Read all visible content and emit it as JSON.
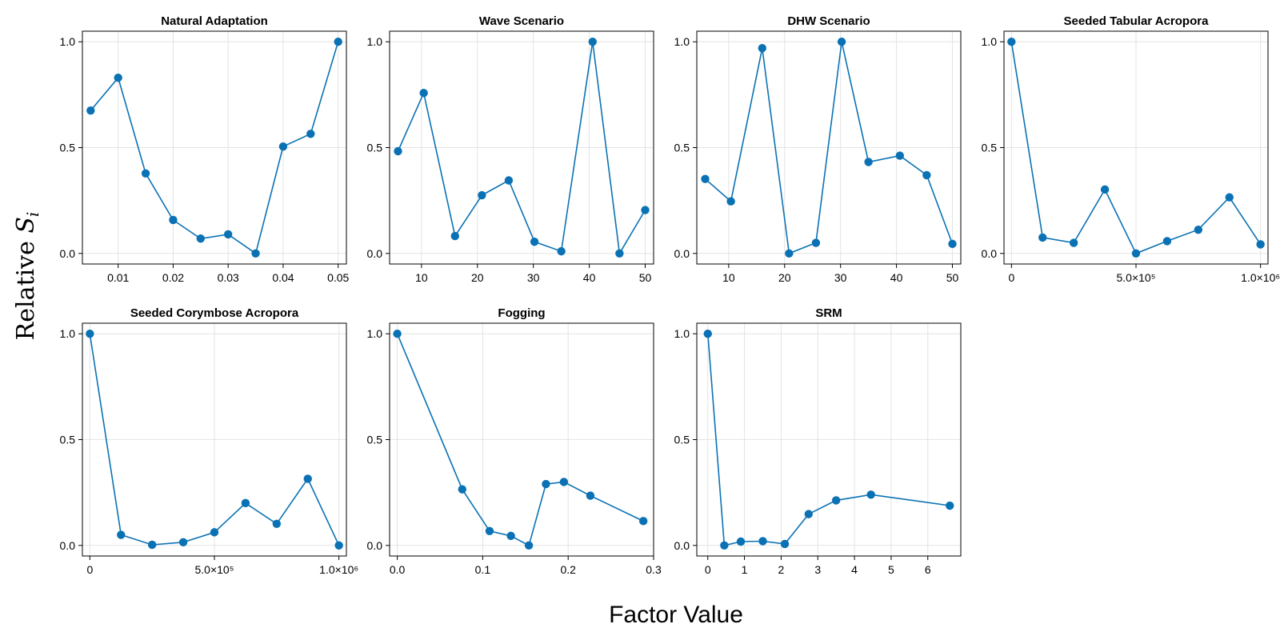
{
  "figure": {
    "ylabel_text": "Relative ",
    "ylabel_var": "S",
    "ylabel_sub": "i",
    "xlabel": "Factor Value",
    "series_color": "#0a72b4"
  },
  "chart_data": [
    {
      "type": "line",
      "title": "Natural Adaptation",
      "x": [
        0.005,
        0.01,
        0.015,
        0.02,
        0.025,
        0.03,
        0.035,
        0.04,
        0.045,
        0.05
      ],
      "y": [
        0.675,
        0.83,
        0.378,
        0.158,
        0.07,
        0.09,
        0.0,
        0.505,
        0.565,
        1.0
      ],
      "xlim": [
        0.0035,
        0.0515
      ],
      "ylim": [
        -0.05,
        1.05
      ],
      "xticks": [
        0.01,
        0.02,
        0.03,
        0.04,
        0.05
      ],
      "xtick_labels": [
        "0.01",
        "0.02",
        "0.03",
        "0.04",
        "0.05"
      ],
      "yticks": [
        0.0,
        0.5,
        1.0
      ],
      "ytick_labels": [
        "0.0",
        "0.5",
        "1.0"
      ],
      "grid": true
    },
    {
      "type": "line",
      "title": "Wave Scenario",
      "x": [
        5.8,
        10.4,
        16.0,
        20.8,
        25.6,
        30.2,
        35.0,
        40.6,
        45.4,
        50.0
      ],
      "y": [
        0.483,
        0.758,
        0.082,
        0.275,
        0.345,
        0.055,
        0.01,
        1.0,
        0.0,
        0.205
      ],
      "xlim": [
        4.3,
        51.5
      ],
      "ylim": [
        -0.05,
        1.05
      ],
      "xticks": [
        10,
        20,
        30,
        40,
        50
      ],
      "xtick_labels": [
        "10",
        "20",
        "30",
        "40",
        "50"
      ],
      "yticks": [
        0.0,
        0.5,
        1.0
      ],
      "ytick_labels": [
        "0.0",
        "0.5",
        "1.0"
      ],
      "grid": true
    },
    {
      "type": "line",
      "title": "DHW Scenario",
      "x": [
        5.8,
        10.4,
        16.0,
        20.8,
        25.6,
        30.2,
        35.0,
        40.6,
        45.4,
        50.0
      ],
      "y": [
        0.352,
        0.246,
        0.97,
        0.0,
        0.05,
        1.0,
        0.432,
        0.462,
        0.37,
        0.045
      ],
      "xlim": [
        4.3,
        51.5
      ],
      "ylim": [
        -0.05,
        1.05
      ],
      "xticks": [
        10,
        20,
        30,
        40,
        50
      ],
      "xtick_labels": [
        "10",
        "20",
        "30",
        "40",
        "50"
      ],
      "yticks": [
        0.0,
        0.5,
        1.0
      ],
      "ytick_labels": [
        "0.0",
        "0.5",
        "1.0"
      ],
      "grid": true
    },
    {
      "type": "line",
      "title": "Seeded Tabular Acropora",
      "x": [
        0,
        125000,
        250000,
        375000,
        500000,
        625000,
        750000,
        875000,
        1000000
      ],
      "y": [
        1.0,
        0.075,
        0.05,
        0.302,
        0.0,
        0.058,
        0.112,
        0.265,
        0.043
      ],
      "xlim": [
        -30000,
        1030000
      ],
      "ylim": [
        -0.05,
        1.05
      ],
      "xticks": [
        0,
        500000,
        1000000
      ],
      "xtick_labels": [
        "0",
        "5.0×10⁵",
        "1.0×10⁶"
      ],
      "yticks": [
        0.0,
        0.5,
        1.0
      ],
      "ytick_labels": [
        "0.0",
        "0.5",
        "1.0"
      ],
      "grid": true
    },
    {
      "type": "line",
      "title": "Seeded Corymbose Acropora",
      "x": [
        0,
        125000,
        250000,
        375000,
        500000,
        625000,
        750000,
        875000,
        1000000
      ],
      "y": [
        1.0,
        0.05,
        0.003,
        0.015,
        0.062,
        0.2,
        0.102,
        0.315,
        0.0
      ],
      "xlim": [
        -30000,
        1030000
      ],
      "ylim": [
        -0.05,
        1.05
      ],
      "xticks": [
        0,
        500000,
        1000000
      ],
      "xtick_labels": [
        "0",
        "5.0×10⁵",
        "1.0×10⁶"
      ],
      "yticks": [
        0.0,
        0.5,
        1.0
      ],
      "ytick_labels": [
        "0.0",
        "0.5",
        "1.0"
      ],
      "grid": true
    },
    {
      "type": "line",
      "title": "Fogging",
      "x": [
        0.0,
        0.076,
        0.108,
        0.133,
        0.154,
        0.174,
        0.195,
        0.226,
        0.288
      ],
      "y": [
        1.0,
        0.265,
        0.068,
        0.045,
        0.0,
        0.29,
        0.3,
        0.235,
        0.115
      ],
      "xlim": [
        -0.009,
        0.3
      ],
      "ylim": [
        -0.05,
        1.05
      ],
      "xticks": [
        0.0,
        0.1,
        0.2,
        0.3
      ],
      "xtick_labels": [
        "0.0",
        "0.1",
        "0.2",
        "0.3"
      ],
      "yticks": [
        0.0,
        0.5,
        1.0
      ],
      "ytick_labels": [
        "0.0",
        "0.5",
        "1.0"
      ],
      "grid": true
    },
    {
      "type": "line",
      "title": "SRM",
      "x": [
        0.0,
        0.45,
        0.9,
        1.5,
        2.1,
        2.75,
        3.5,
        4.45,
        6.6
      ],
      "y": [
        1.0,
        0.0,
        0.018,
        0.02,
        0.007,
        0.148,
        0.213,
        0.24,
        0.188
      ],
      "xlim": [
        -0.3,
        6.9
      ],
      "ylim": [
        -0.05,
        1.05
      ],
      "xticks": [
        0,
        1,
        2,
        3,
        4,
        5,
        6
      ],
      "xtick_labels": [
        "0",
        "1",
        "2",
        "3",
        "4",
        "5",
        "6"
      ],
      "yticks": [
        0.0,
        0.5,
        1.0
      ],
      "ytick_labels": [
        "0.0",
        "0.5",
        "1.0"
      ],
      "grid": true
    }
  ]
}
